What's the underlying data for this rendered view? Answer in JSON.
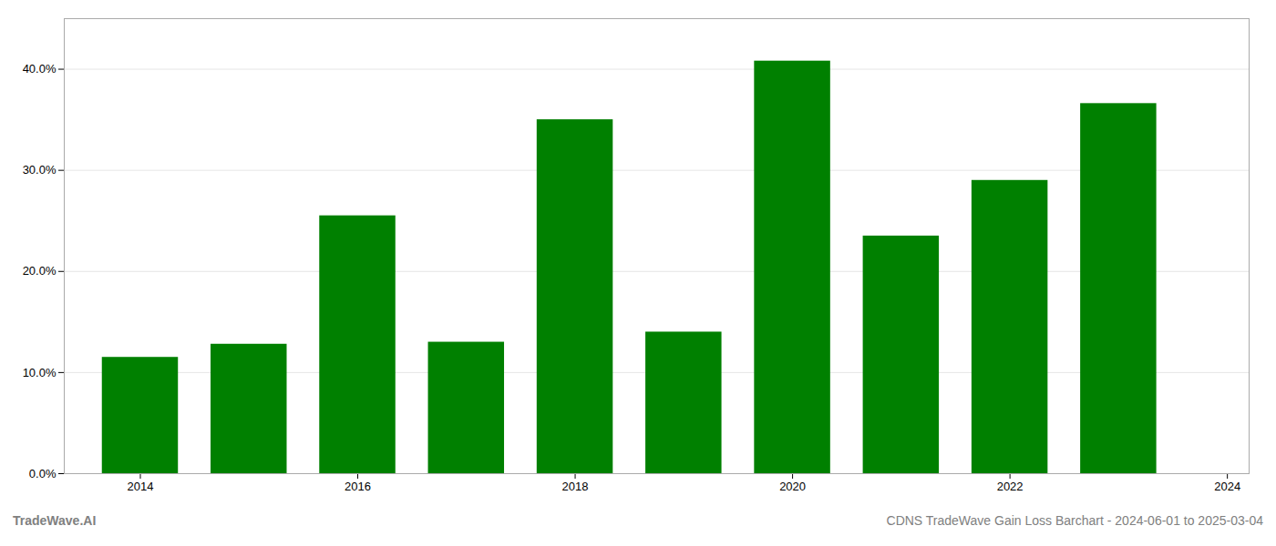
{
  "chart_data": {
    "type": "bar",
    "x": [
      2014,
      2015,
      2016,
      2017,
      2018,
      2019,
      2020,
      2021,
      2022,
      2023
    ],
    "values": [
      0.115,
      0.128,
      0.255,
      0.13,
      0.35,
      0.14,
      0.408,
      0.235,
      0.29,
      0.366
    ],
    "color": "#008000",
    "xlim": [
      2013.3,
      2024.2
    ],
    "xticks": [
      2014,
      2016,
      2018,
      2020,
      2022,
      2024
    ],
    "ylim": [
      0,
      0.45
    ],
    "yticks": [
      {
        "value": 0.0,
        "label": "0.0%"
      },
      {
        "value": 0.1,
        "label": "10.0%"
      },
      {
        "value": 0.2,
        "label": "20.0%"
      },
      {
        "value": 0.3,
        "label": "30.0%"
      },
      {
        "value": 0.4,
        "label": "40.0%"
      }
    ],
    "grid": true,
    "annotations": [
      "TradeWave.AI",
      "CDNS TradeWave Gain Loss Barchart - 2024-06-01 to 2025-03-04"
    ]
  }
}
